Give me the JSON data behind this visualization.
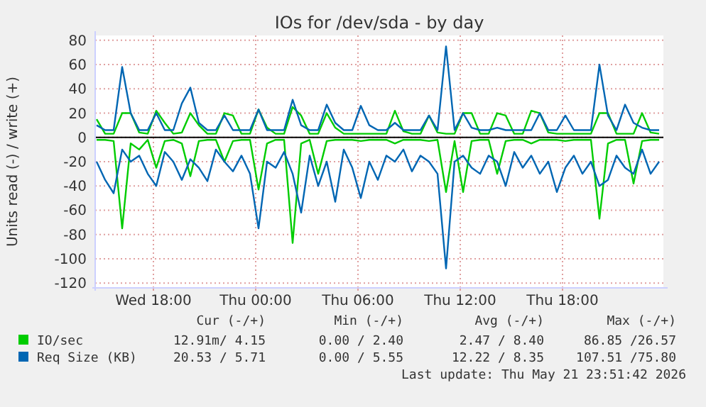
{
  "chart_data": {
    "type": "line",
    "title": "IOs for /dev/sda - by day",
    "ylabel": "Units read (-) / write (+)",
    "x": [
      "2026-05-20T14:40",
      "2026-05-20T15:10",
      "2026-05-20T15:40",
      "2026-05-20T16:10",
      "2026-05-20T16:40",
      "2026-05-20T17:10",
      "2026-05-20T17:40",
      "2026-05-20T18:10",
      "2026-05-20T18:40",
      "2026-05-20T19:10",
      "2026-05-20T19:40",
      "2026-05-20T20:10",
      "2026-05-20T20:40",
      "2026-05-20T21:10",
      "2026-05-20T21:40",
      "2026-05-20T22:10",
      "2026-05-20T22:40",
      "2026-05-20T23:10",
      "2026-05-20T23:40",
      "2026-05-21T00:10",
      "2026-05-21T00:40",
      "2026-05-21T01:10",
      "2026-05-21T01:40",
      "2026-05-21T02:10",
      "2026-05-21T02:40",
      "2026-05-21T03:10",
      "2026-05-21T03:40",
      "2026-05-21T04:10",
      "2026-05-21T04:40",
      "2026-05-21T05:10",
      "2026-05-21T05:40",
      "2026-05-21T06:10",
      "2026-05-21T06:40",
      "2026-05-21T07:10",
      "2026-05-21T07:40",
      "2026-05-21T08:10",
      "2026-05-21T08:40",
      "2026-05-21T09:10",
      "2026-05-21T09:40",
      "2026-05-21T10:10",
      "2026-05-21T10:40",
      "2026-05-21T11:10",
      "2026-05-21T11:40",
      "2026-05-21T12:10",
      "2026-05-21T12:40",
      "2026-05-21T13:10",
      "2026-05-21T13:40",
      "2026-05-21T14:10",
      "2026-05-21T14:40",
      "2026-05-21T15:10",
      "2026-05-21T15:40",
      "2026-05-21T16:10",
      "2026-05-21T16:40",
      "2026-05-21T17:10",
      "2026-05-21T17:40",
      "2026-05-21T18:10",
      "2026-05-21T18:40",
      "2026-05-21T19:10",
      "2026-05-21T19:40",
      "2026-05-21T20:10",
      "2026-05-21T20:40",
      "2026-05-21T21:10",
      "2026-05-21T21:40",
      "2026-05-21T22:10",
      "2026-05-21T22:40",
      "2026-05-21T23:10",
      "2026-05-21T23:40"
    ],
    "series": [
      {
        "name": "IO/sec",
        "color": "#00cc00",
        "values": [
          15,
          3,
          3,
          20,
          20,
          4,
          3,
          22,
          12,
          3,
          4,
          20,
          10,
          3,
          3,
          20,
          18,
          3,
          3,
          23,
          8,
          3,
          3,
          25,
          18,
          3,
          3,
          20,
          8,
          3,
          3,
          3,
          3,
          3,
          3,
          22,
          5,
          3,
          3,
          18,
          4,
          3,
          3,
          20,
          20,
          3,
          3,
          20,
          18,
          3,
          3,
          22,
          20,
          4,
          3,
          3,
          3,
          3,
          3,
          20,
          20,
          3,
          3,
          3,
          20,
          4,
          3
        ]
      },
      {
        "color": "#00cc00",
        "values": [
          -2,
          -2,
          -3,
          -75,
          -5,
          -10,
          -2,
          -25,
          -3,
          -2,
          -5,
          -32,
          -3,
          -2,
          -2,
          -20,
          -3,
          -2,
          -2,
          -43,
          -5,
          -2,
          -2,
          -87,
          -5,
          -2,
          -30,
          -3,
          -2,
          -2,
          -2,
          -3,
          -2,
          -2,
          -2,
          -5,
          -2,
          -2,
          -2,
          -3,
          -2,
          -45,
          -3,
          -45,
          -3,
          -2,
          -2,
          -30,
          -3,
          -2,
          -2,
          -5,
          -2,
          -2,
          -2,
          -3,
          -2,
          -2,
          -2,
          -67,
          -5,
          -2,
          -2,
          -38,
          -3,
          -2,
          -2
        ]
      },
      {
        "name": "Req Size (KB)",
        "color": "#0066b3",
        "values": [
          10,
          6,
          6,
          58,
          20,
          6,
          6,
          20,
          6,
          6,
          28,
          41,
          12,
          6,
          6,
          18,
          6,
          6,
          6,
          23,
          6,
          6,
          6,
          31,
          10,
          6,
          6,
          27,
          12,
          6,
          6,
          26,
          10,
          6,
          6,
          12,
          6,
          6,
          6,
          18,
          6,
          75,
          6,
          20,
          8,
          6,
          6,
          8,
          6,
          6,
          6,
          6,
          20,
          6,
          6,
          18,
          6,
          6,
          6,
          60,
          18,
          6,
          27,
          12,
          8,
          6,
          6
        ]
      },
      {
        "color": "#0066b3",
        "values": [
          -20,
          -35,
          -46,
          -10,
          -20,
          -15,
          -30,
          -40,
          -12,
          -20,
          -35,
          -18,
          -25,
          -36,
          -10,
          -20,
          -28,
          -15,
          -30,
          -75,
          -20,
          -25,
          -12,
          -30,
          -62,
          -15,
          -40,
          -20,
          -53,
          -10,
          -25,
          -50,
          -20,
          -35,
          -15,
          -20,
          -10,
          -28,
          -15,
          -20,
          -30,
          -108,
          -20,
          -15,
          -25,
          -30,
          -15,
          -20,
          -40,
          -12,
          -25,
          -15,
          -30,
          -20,
          -45,
          -25,
          -15,
          -30,
          -20,
          -40,
          -35,
          -15,
          -25,
          -30,
          -10,
          -30,
          -20
        ]
      }
    ],
    "xlim": [
      "2026-05-20T14:35",
      "2026-05-21T23:55"
    ],
    "xticks": [
      {
        "value": "2026-05-20T18:00",
        "label": "Wed 18:00"
      },
      {
        "value": "2026-05-21T00:00",
        "label": "Thu 00:00"
      },
      {
        "value": "2026-05-21T06:00",
        "label": "Thu 06:00"
      },
      {
        "value": "2026-05-21T12:00",
        "label": "Thu 12:00"
      },
      {
        "value": "2026-05-21T18:00",
        "label": "Thu 18:00"
      }
    ],
    "ylim": [
      -124,
      84
    ],
    "yticks": [
      -120,
      -100,
      -80,
      -60,
      -40,
      -20,
      0,
      20,
      40,
      60,
      80
    ],
    "grid": true,
    "legend": "bottom",
    "line_style": "solid",
    "ref_lines": [
      {
        "axis": "y",
        "value": 0,
        "color": "#000000"
      }
    ],
    "annotations": [
      "Cur (-/+)",
      "Min (-/+)",
      "Avg (-/+)",
      "Max (-/+)",
      "12.91m/ 4.15",
      "0.00 / 2.40",
      "2.47 / 8.40",
      "86.85 /26.57",
      "20.53 / 5.71",
      "0.00 / 5.55",
      "12.22 / 8.35",
      "107.51 /75.80",
      "Last update: Thu May 21 23:51:42 2026"
    ]
  }
}
